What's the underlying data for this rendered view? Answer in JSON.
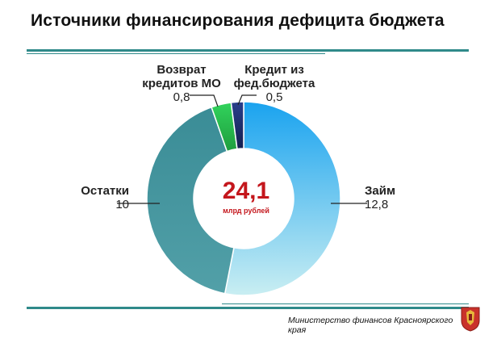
{
  "title": "Источники финансирования дефицита бюджета",
  "footer": "Министерство финансов Красноярского края",
  "chart_data": {
    "type": "pie",
    "variant": "donut",
    "total": "24,1",
    "total_unit": "млрд рублей",
    "slices": [
      {
        "label": "Займ",
        "value_text": "12,8",
        "value": 12.8,
        "color": "#4fc3f7"
      },
      {
        "label": "Остатки",
        "value_text": "10",
        "value": 10,
        "color": "#3f8f99"
      },
      {
        "label": "Возврат кредитов МО",
        "value_text": "0,8",
        "value": 0.8,
        "color": "#2dbe4f"
      },
      {
        "label": "Кредит из фед.бюджета",
        "value_text": "0,5",
        "value": 0.5,
        "color": "#1c2e6b"
      }
    ],
    "labels": {
      "zaim": {
        "line1": "Займ",
        "value": "12,8"
      },
      "ostatki": {
        "line1": "Остатки",
        "value": "10"
      },
      "vozvrat": {
        "line1": "Возврат",
        "line2": "кредитов МО",
        "value": "0,8"
      },
      "kredit": {
        "line1": "Кредит из",
        "line2": "фед.бюджета",
        "value": "0,5"
      }
    }
  }
}
